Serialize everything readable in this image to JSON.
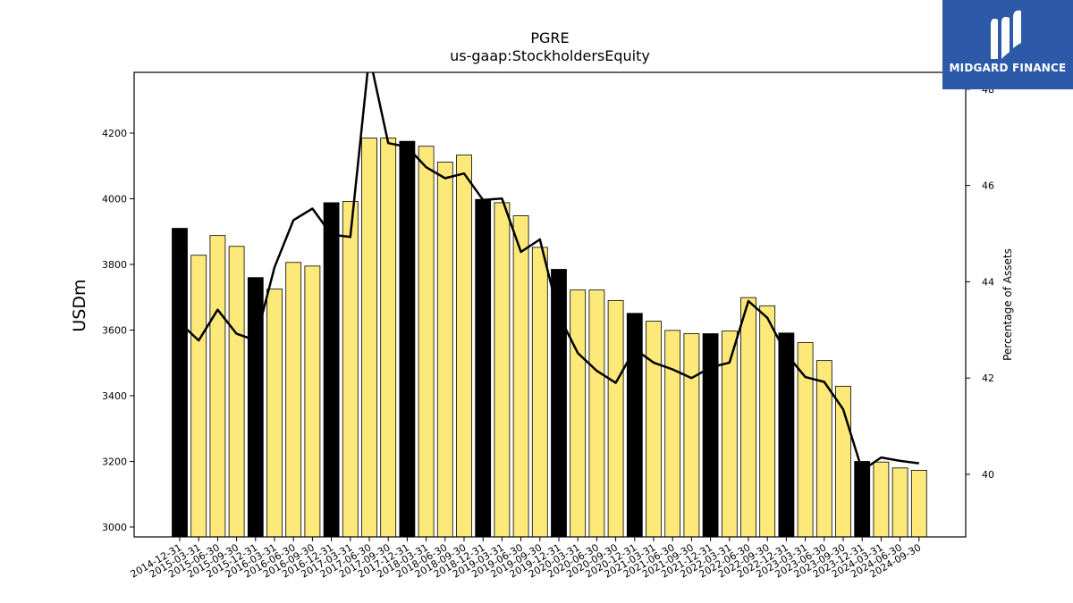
{
  "brand": {
    "name": "MIDGARD FINANCE",
    "logo_icon": "midgard-m-logo-icon",
    "bg_color": "#2c5aa8"
  },
  "chart_data": {
    "type": "bar",
    "title": "PGRE",
    "subtitle": "us-gaap:StockholdersEquity",
    "ylabel": "USDm",
    "y2label": "Percentage of Assets",
    "ylim": [
      2970,
      4385
    ],
    "y2lim": [
      38.7,
      48.35
    ],
    "yticks": [
      3000,
      3200,
      3400,
      3600,
      3800,
      4000,
      4200
    ],
    "y2ticks": [
      40,
      42,
      44,
      46,
      48
    ],
    "colors": {
      "annual": "#000000",
      "quarterly": "#fce979",
      "line": "#000000"
    },
    "categories": [
      "2014-12-31",
      "2015-03-31",
      "2015-06-30",
      "2015-09-30",
      "2015-12-31",
      "2016-03-31",
      "2016-06-30",
      "2016-09-30",
      "2016-12-31",
      "2017-03-31",
      "2017-06-30",
      "2017-09-30",
      "2017-12-31",
      "2018-03-31",
      "2018-06-30",
      "2018-09-30",
      "2018-12-31",
      "2019-03-31",
      "2019-06-30",
      "2019-09-30",
      "2019-12-31",
      "2020-03-31",
      "2020-06-30",
      "2020-09-30",
      "2020-12-31",
      "2021-03-31",
      "2021-06-30",
      "2021-09-30",
      "2021-12-31",
      "2022-03-31",
      "2022-06-30",
      "2022-09-30",
      "2022-12-31",
      "2023-03-31",
      "2023-06-30",
      "2023-09-30",
      "2023-12-31",
      "2024-03-31",
      "2024-06-30",
      "2024-09-30"
    ],
    "series": [
      {
        "values": [
          3910,
          3828,
          3888,
          3855,
          3760,
          3725,
          3806,
          3795,
          3988,
          3992,
          4185,
          4185,
          4175,
          4160,
          4112,
          4133,
          3998,
          3988,
          3948,
          3852,
          3785,
          3722,
          3722,
          3690,
          3651,
          3627,
          3599,
          3589,
          3589,
          3597,
          3699,
          3674,
          3591,
          3562,
          3507,
          3429,
          3200,
          3198,
          3180,
          3173
        ]
      },
      {
        "values": [
          43.15,
          42.78,
          43.42,
          42.92,
          42.78,
          44.3,
          45.28,
          45.52,
          44.98,
          44.93,
          48.7,
          46.88,
          46.8,
          46.38,
          46.15,
          46.25,
          45.7,
          45.73,
          44.62,
          44.88,
          43.3,
          42.52,
          42.15,
          41.9,
          42.6,
          42.32,
          42.18,
          42.0,
          42.22,
          42.32,
          43.6,
          43.25,
          42.5,
          42.02,
          41.92,
          41.35,
          40.08,
          40.35,
          40.28,
          40.23
        ]
      }
    ],
    "annual_flags": [
      1,
      0,
      0,
      0,
      1,
      0,
      0,
      0,
      1,
      0,
      0,
      0,
      1,
      0,
      0,
      0,
      1,
      0,
      0,
      0,
      1,
      0,
      0,
      0,
      1,
      0,
      0,
      0,
      1,
      0,
      0,
      0,
      1,
      0,
      0,
      0,
      1,
      0,
      0,
      0
    ],
    "legend": "none",
    "grid": false
  }
}
